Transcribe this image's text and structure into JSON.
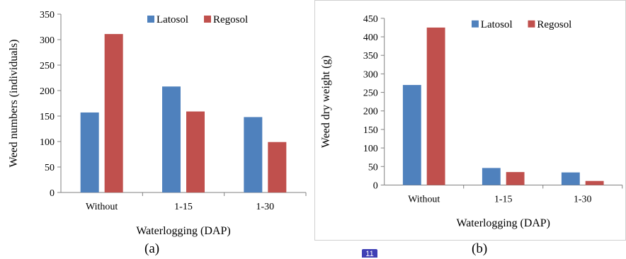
{
  "chart_data": [
    {
      "type": "bar",
      "title": "",
      "xlabel": "Waterlogging (DAP)",
      "ylabel": "Weed numbers (individuals)",
      "caption": "(a)",
      "categories": [
        "Without",
        "1-15",
        "1-30"
      ],
      "series": [
        {
          "name": "Latosol",
          "color": "#4f81bd",
          "values": [
            157,
            208,
            148
          ]
        },
        {
          "name": "Regosol",
          "color": "#c0504d",
          "values": [
            311,
            159,
            99
          ]
        }
      ],
      "ylim": [
        0,
        350
      ],
      "yticks": [
        0,
        50,
        100,
        150,
        200,
        250,
        300,
        350
      ],
      "grid": false,
      "legend": "top-right"
    },
    {
      "type": "bar",
      "title": "",
      "xlabel": "Waterlogging (DAP)",
      "ylabel": "Weed dry weight (g)",
      "caption": "(b)",
      "categories": [
        "Without",
        "1-15",
        "1-30"
      ],
      "series": [
        {
          "name": "Latosol",
          "color": "#4f81bd",
          "values": [
            270,
            46,
            34
          ]
        },
        {
          "name": "Regosol",
          "color": "#c0504d",
          "values": [
            425,
            35,
            11
          ]
        }
      ],
      "ylim": [
        0,
        450
      ],
      "yticks": [
        0,
        50,
        100,
        150,
        200,
        250,
        300,
        350,
        400,
        450
      ],
      "grid": false,
      "legend": "top-right"
    }
  ],
  "page_badge": "11"
}
